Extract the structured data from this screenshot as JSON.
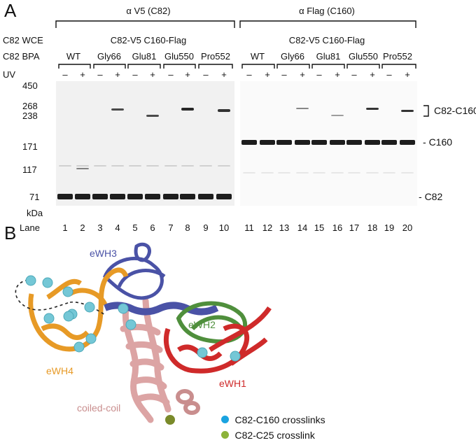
{
  "panel_a": {
    "letter": "A",
    "group_left": "α V5 (C82)",
    "group_right": "α Flag (C160)",
    "row_labels": {
      "wce": "C82 WCE",
      "bpa": "C82 BPA",
      "uv": "UV",
      "kda": "kDa",
      "lane": "Lane"
    },
    "construct": "C82-V5 C160-Flag",
    "variants": [
      "WT",
      "Gly66",
      "Glu81",
      "Glu550",
      "Pro552"
    ],
    "uv_minus": "–",
    "uv_plus": "+",
    "markers": [
      "450",
      "268",
      "238",
      "171",
      "117",
      "71"
    ],
    "lanes": [
      "1",
      "2",
      "3",
      "4",
      "5",
      "6",
      "7",
      "8",
      "9",
      "10",
      "11",
      "12",
      "13",
      "14",
      "15",
      "16",
      "17",
      "18",
      "19",
      "20"
    ],
    "band_labels": {
      "crosslink": "C82-C160",
      "c160": "C160",
      "c82": "C82"
    },
    "asterisk": "*"
  },
  "panel_b": {
    "letter": "B",
    "domains": {
      "ewh3": "eWH3",
      "ewh2": "eWH2",
      "ewh4": "eWH4",
      "ewh1": "eWH1",
      "coiled": "coiled-coil"
    },
    "legend": [
      {
        "label": "C82-C160 crosslinks",
        "color": "#1aa3e0"
      },
      {
        "label": "C82-C25 crosslink",
        "color": "#8cb33a"
      }
    ],
    "colors": {
      "ewh3": "#4a52a6",
      "ewh2": "#4f8f3c",
      "ewh4": "#e79a26",
      "ewh1": "#cf2a2a",
      "coiled": "#dca4a4",
      "sphere": "#74c7d6",
      "sphere_c25": "#7a8a2a"
    }
  }
}
